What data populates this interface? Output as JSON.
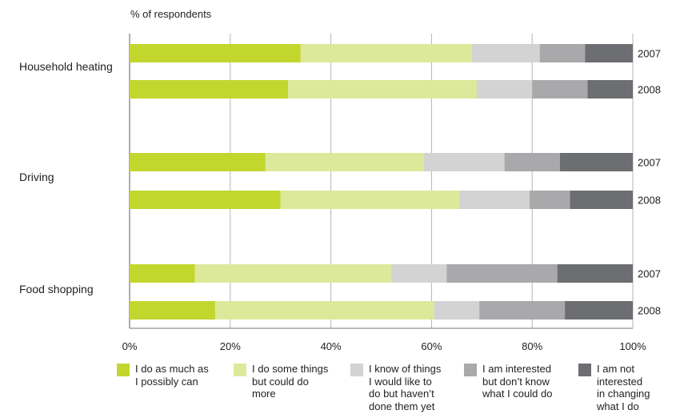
{
  "chart_data": {
    "type": "bar",
    "orientation": "horizontal",
    "stacked": true,
    "ylabel": "% of respondents",
    "groups": [
      "Household heating",
      "Driving",
      "Food shopping"
    ],
    "years": [
      "2007",
      "2008"
    ],
    "x_ticks": [
      "0%",
      "20%",
      "40%",
      "60%",
      "80%",
      "100%"
    ],
    "xlim": [
      0,
      100
    ],
    "grid": true,
    "legend_position": "bottom",
    "series": [
      {
        "name": "I do as much as\nI possibly can",
        "color": "#c2d62e",
        "values": [
          [
            34,
            31.5
          ],
          [
            27,
            30
          ],
          [
            13,
            17
          ]
        ]
      },
      {
        "name": "I do some things\nbut could do\nmore",
        "color": "#dde99a",
        "values": [
          [
            34,
            37.5
          ],
          [
            31.5,
            35.5
          ],
          [
            39,
            43.5
          ]
        ]
      },
      {
        "name": "I know of things\nI would like to\ndo but haven’t\ndone them yet",
        "color": "#d3d3d3",
        "values": [
          [
            13.5,
            11
          ],
          [
            16,
            14
          ],
          [
            11,
            9
          ]
        ]
      },
      {
        "name": "I am interested\nbut don’t know\nwhat I could do",
        "color": "#a9a9ab",
        "values": [
          [
            9,
            11
          ],
          [
            11,
            8
          ],
          [
            22,
            17
          ]
        ]
      },
      {
        "name": "I am not\ninterested\nin changing\nwhat I do",
        "color": "#6d6e71",
        "values": [
          [
            9.5,
            9
          ],
          [
            14.5,
            12.5
          ],
          [
            15,
            13.5
          ]
        ]
      }
    ]
  }
}
